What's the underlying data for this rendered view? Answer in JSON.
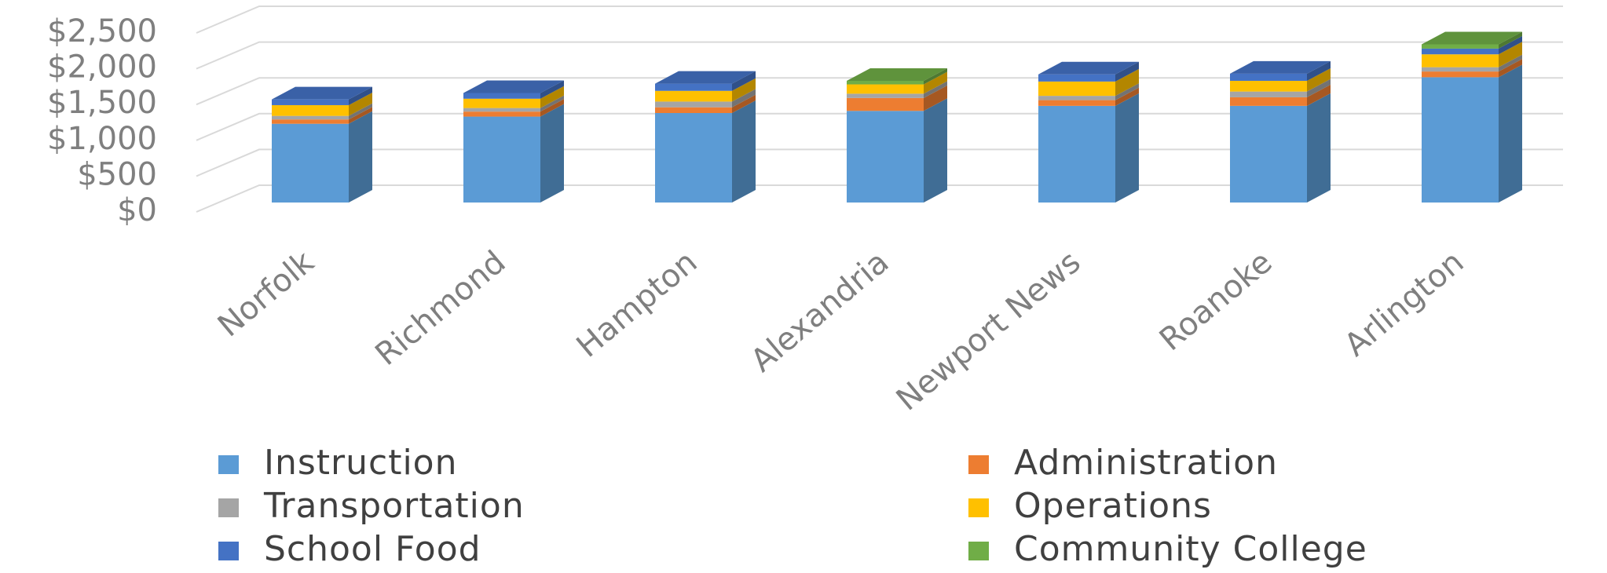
{
  "chart_data": {
    "type": "bar3d_stacked",
    "categories": [
      "Norfolk",
      "Richmond",
      "Hampton",
      "Alexandria",
      "Newport News",
      "Roanoke",
      "Arlington"
    ],
    "series": [
      {
        "name": "Instruction",
        "color": "#5b9bd5",
        "values": [
          1100,
          1200,
          1250,
          1280,
          1350,
          1350,
          1750
        ]
      },
      {
        "name": "Administration",
        "color": "#ed7d31",
        "values": [
          60,
          70,
          80,
          180,
          80,
          120,
          80
        ]
      },
      {
        "name": "Transportation",
        "color": "#a5a5a5",
        "values": [
          50,
          50,
          80,
          60,
          60,
          80,
          60
        ]
      },
      {
        "name": "Operations",
        "color": "#ffc000",
        "values": [
          150,
          130,
          150,
          130,
          200,
          150,
          180
        ]
      },
      {
        "name": "School Food",
        "color": "#4472c4",
        "values": [
          80,
          80,
          100,
          0,
          100,
          100,
          80
        ]
      },
      {
        "name": "Community College",
        "color": "#70ad47",
        "values": [
          0,
          0,
          0,
          50,
          0,
          0,
          60
        ]
      }
    ],
    "ylim": [
      0,
      2500
    ],
    "yticks": [
      {
        "value": 0,
        "label": "$0"
      },
      {
        "value": 500,
        "label": "$500"
      },
      {
        "value": 1000,
        "label": "$1,000"
      },
      {
        "value": 1500,
        "label": "$1,500"
      },
      {
        "value": 2000,
        "label": "$2,000"
      },
      {
        "value": 2500,
        "label": "$2,500"
      }
    ],
    "grid": true,
    "legend": "bottom"
  }
}
